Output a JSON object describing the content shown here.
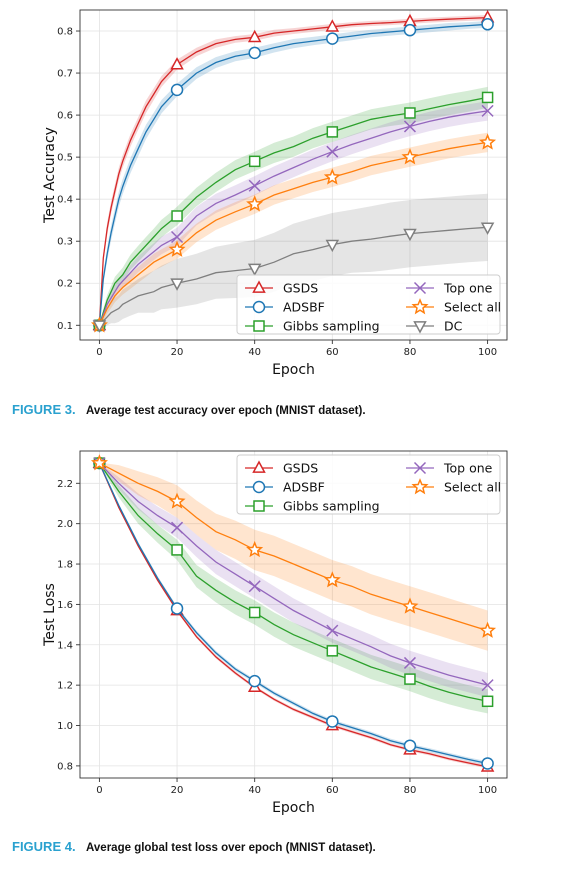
{
  "colors": {
    "GSDS": "#d62728",
    "ADSBF": "#1f77b4",
    "Gibbs sampling": "#2ca02c",
    "Top one": "#9467bd",
    "Select all": "#ff7f0e",
    "DC": "#7f7f7f"
  },
  "figures": [
    {
      "label": "FIGURE 3.",
      "caption": "Average test accuracy over epoch (MNIST dataset).",
      "chart_data": {
        "type": "line",
        "xlabel": "Epoch",
        "ylabel": "Test Accuracy",
        "xlim": [
          -5,
          105
        ],
        "ylim": [
          0.065,
          0.85
        ],
        "xticks": [
          0,
          20,
          40,
          60,
          80,
          100
        ],
        "yticks": [
          0.1,
          0.2,
          0.3,
          0.4,
          0.5,
          0.6,
          0.7,
          0.8
        ],
        "tick_labels_x": [
          "0",
          "20",
          "40",
          "60",
          "80",
          "100"
        ],
        "tick_labels_y": [
          "0.1",
          "0.2",
          "0.3",
          "0.4",
          "0.5",
          "0.6",
          "0.7",
          "0.8"
        ],
        "grid": true,
        "legend_position": "lower-right",
        "legend_columns": 2,
        "x": [
          0,
          1,
          2,
          3,
          4,
          5,
          6,
          8,
          10,
          12,
          14,
          16,
          18,
          20,
          25,
          30,
          35,
          40,
          45,
          50,
          55,
          60,
          65,
          70,
          75,
          80,
          85,
          90,
          95,
          100
        ],
        "series": [
          {
            "name": "GSDS",
            "marker": "triangle-up",
            "values": [
              0.1,
              0.26,
              0.33,
              0.38,
              0.42,
              0.46,
              0.49,
              0.54,
              0.58,
              0.62,
              0.65,
              0.68,
              0.7,
              0.72,
              0.75,
              0.77,
              0.78,
              0.785,
              0.795,
              0.8,
              0.805,
              0.81,
              0.815,
              0.818,
              0.82,
              0.823,
              0.826,
              0.828,
              0.83,
              0.832
            ],
            "band": [
              0.003,
              0.01,
              0.015,
              0.015,
              0.015,
              0.015,
              0.015,
              0.015,
              0.015,
              0.015,
              0.014,
              0.013,
              0.012,
              0.012,
              0.01,
              0.01,
              0.008,
              0.008,
              0.008,
              0.007,
              0.007,
              0.007,
              0.006,
              0.006,
              0.006,
              0.006,
              0.006,
              0.006,
              0.006,
              0.006
            ]
          },
          {
            "name": "ADSBF",
            "marker": "circle",
            "values": [
              0.1,
              0.21,
              0.27,
              0.32,
              0.36,
              0.4,
              0.43,
              0.48,
              0.52,
              0.56,
              0.59,
              0.62,
              0.64,
              0.66,
              0.7,
              0.725,
              0.74,
              0.748,
              0.76,
              0.77,
              0.776,
              0.782,
              0.788,
              0.794,
              0.798,
              0.802,
              0.806,
              0.81,
              0.813,
              0.816
            ],
            "band": [
              0.003,
              0.012,
              0.016,
              0.018,
              0.018,
              0.018,
              0.018,
              0.018,
              0.018,
              0.017,
              0.016,
              0.016,
              0.015,
              0.015,
              0.014,
              0.013,
              0.012,
              0.012,
              0.011,
              0.011,
              0.01,
              0.01,
              0.01,
              0.009,
              0.009,
              0.009,
              0.009,
              0.009,
              0.008,
              0.008
            ]
          },
          {
            "name": "Gibbs sampling",
            "marker": "square",
            "values": [
              0.1,
              0.13,
              0.16,
              0.18,
              0.2,
              0.21,
              0.22,
              0.25,
              0.27,
              0.29,
              0.31,
              0.33,
              0.345,
              0.36,
              0.405,
              0.44,
              0.47,
              0.49,
              0.51,
              0.525,
              0.545,
              0.56,
              0.575,
              0.59,
              0.598,
              0.605,
              0.615,
              0.625,
              0.633,
              0.642
            ],
            "band": [
              0.003,
              0.01,
              0.012,
              0.014,
              0.015,
              0.016,
              0.017,
              0.018,
              0.019,
              0.02,
              0.02,
              0.021,
              0.021,
              0.022,
              0.022,
              0.023,
              0.023,
              0.023,
              0.024,
              0.024,
              0.024,
              0.024,
              0.024,
              0.024,
              0.024,
              0.025,
              0.025,
              0.025,
              0.025,
              0.025
            ]
          },
          {
            "name": "Top one",
            "marker": "x",
            "values": [
              0.1,
              0.125,
              0.15,
              0.165,
              0.18,
              0.195,
              0.205,
              0.225,
              0.245,
              0.26,
              0.275,
              0.29,
              0.3,
              0.31,
              0.36,
              0.39,
              0.41,
              0.432,
              0.455,
              0.475,
              0.495,
              0.513,
              0.53,
              0.545,
              0.56,
              0.573,
              0.585,
              0.595,
              0.603,
              0.61
            ],
            "band": [
              0.003,
              0.01,
              0.012,
              0.014,
              0.015,
              0.016,
              0.017,
              0.018,
              0.019,
              0.02,
              0.02,
              0.021,
              0.021,
              0.022,
              0.022,
              0.023,
              0.023,
              0.023,
              0.023,
              0.023,
              0.023,
              0.023,
              0.023,
              0.023,
              0.023,
              0.023,
              0.023,
              0.023,
              0.023,
              0.023
            ]
          },
          {
            "name": "Select all",
            "marker": "star",
            "values": [
              0.1,
              0.12,
              0.14,
              0.155,
              0.17,
              0.18,
              0.19,
              0.205,
              0.22,
              0.235,
              0.25,
              0.26,
              0.27,
              0.28,
              0.32,
              0.35,
              0.37,
              0.388,
              0.41,
              0.425,
              0.44,
              0.452,
              0.465,
              0.48,
              0.49,
              0.5,
              0.51,
              0.52,
              0.528,
              0.535
            ],
            "band": [
              0.003,
              0.01,
              0.012,
              0.014,
              0.015,
              0.016,
              0.017,
              0.018,
              0.019,
              0.02,
              0.02,
              0.021,
              0.021,
              0.022,
              0.022,
              0.023,
              0.023,
              0.023,
              0.023,
              0.023,
              0.023,
              0.023,
              0.023,
              0.023,
              0.023,
              0.023,
              0.023,
              0.023,
              0.023,
              0.023
            ]
          },
          {
            "name": "DC",
            "marker": "triangle-down",
            "values": [
              0.1,
              0.11,
              0.12,
              0.13,
              0.135,
              0.14,
              0.15,
              0.16,
              0.17,
              0.175,
              0.18,
              0.19,
              0.195,
              0.2,
              0.21,
              0.225,
              0.23,
              0.235,
              0.25,
              0.27,
              0.28,
              0.292,
              0.3,
              0.305,
              0.312,
              0.318,
              0.322,
              0.326,
              0.33,
              0.333
            ],
            "band": [
              0.003,
              0.015,
              0.02,
              0.025,
              0.03,
              0.032,
              0.035,
              0.037,
              0.04,
              0.045,
              0.05,
              0.052,
              0.055,
              0.058,
              0.06,
              0.062,
              0.065,
              0.068,
              0.07,
              0.072,
              0.075,
              0.075,
              0.075,
              0.078,
              0.08,
              0.08,
              0.08,
              0.08,
              0.08,
              0.08
            ]
          }
        ],
        "marker_x": [
          0,
          20,
          40,
          60,
          80,
          100
        ]
      }
    },
    {
      "label": "FIGURE 4.",
      "caption": "Average global test loss over epoch (MNIST dataset).",
      "chart_data": {
        "type": "line",
        "xlabel": "Epoch",
        "ylabel": "Test Loss",
        "xlim": [
          -5,
          105
        ],
        "ylim": [
          0.74,
          2.36
        ],
        "xticks": [
          0,
          20,
          40,
          60,
          80,
          100
        ],
        "yticks": [
          0.8,
          1.0,
          1.2,
          1.4,
          1.6,
          1.8,
          2.0,
          2.2
        ],
        "tick_labels_x": [
          "0",
          "20",
          "40",
          "60",
          "80",
          "100"
        ],
        "tick_labels_y": [
          "0.8",
          "1.0",
          "1.2",
          "1.4",
          "1.6",
          "1.8",
          "2.0",
          "2.2"
        ],
        "grid": true,
        "legend_position": "upper-right",
        "legend_columns": 2,
        "x": [
          0,
          5,
          10,
          15,
          20,
          25,
          30,
          35,
          40,
          45,
          50,
          55,
          60,
          65,
          70,
          75,
          80,
          85,
          90,
          95,
          100
        ],
        "series": [
          {
            "name": "GSDS",
            "marker": "triangle-up",
            "values": [
              2.3,
              2.08,
              1.89,
              1.72,
              1.57,
              1.44,
              1.34,
              1.26,
              1.19,
              1.13,
              1.08,
              1.04,
              1.0,
              0.97,
              0.94,
              0.905,
              0.88,
              0.86,
              0.835,
              0.815,
              0.795
            ],
            "band": [
              0.003,
              0.006,
              0.007,
              0.008,
              0.008,
              0.008,
              0.008,
              0.008,
              0.008,
              0.008,
              0.008,
              0.008,
              0.008,
              0.008,
              0.008,
              0.008,
              0.008,
              0.008,
              0.008,
              0.008,
              0.008
            ]
          },
          {
            "name": "ADSBF",
            "marker": "circle",
            "values": [
              2.3,
              2.09,
              1.9,
              1.73,
              1.58,
              1.46,
              1.36,
              1.28,
              1.22,
              1.16,
              1.11,
              1.06,
              1.02,
              0.99,
              0.96,
              0.925,
              0.9,
              0.878,
              0.855,
              0.832,
              0.812
            ],
            "band": [
              0.003,
              0.008,
              0.009,
              0.01,
              0.01,
              0.01,
              0.01,
              0.01,
              0.01,
              0.01,
              0.01,
              0.01,
              0.01,
              0.01,
              0.01,
              0.01,
              0.01,
              0.01,
              0.01,
              0.01,
              0.01
            ]
          },
          {
            "name": "Gibbs sampling",
            "marker": "square",
            "values": [
              2.3,
              2.16,
              2.04,
              1.95,
              1.87,
              1.74,
              1.67,
              1.61,
              1.56,
              1.5,
              1.45,
              1.41,
              1.37,
              1.33,
              1.29,
              1.26,
              1.23,
              1.195,
              1.165,
              1.14,
              1.12
            ],
            "band": [
              0.003,
              0.03,
              0.04,
              0.045,
              0.05,
              0.055,
              0.06,
              0.06,
              0.06,
              0.06,
              0.06,
              0.06,
              0.06,
              0.06,
              0.06,
              0.06,
              0.06,
              0.06,
              0.06,
              0.06,
              0.06
            ]
          },
          {
            "name": "Top one",
            "marker": "x",
            "values": [
              2.3,
              2.2,
              2.11,
              2.04,
              1.98,
              1.89,
              1.81,
              1.75,
              1.69,
              1.63,
              1.57,
              1.52,
              1.47,
              1.43,
              1.39,
              1.345,
              1.31,
              1.28,
              1.25,
              1.225,
              1.2
            ],
            "band": [
              0.003,
              0.03,
              0.04,
              0.045,
              0.05,
              0.055,
              0.06,
              0.06,
              0.06,
              0.06,
              0.06,
              0.06,
              0.06,
              0.06,
              0.06,
              0.06,
              0.06,
              0.06,
              0.06,
              0.06,
              0.06
            ]
          },
          {
            "name": "Select all",
            "marker": "star",
            "values": [
              2.3,
              2.25,
              2.2,
              2.16,
              2.11,
              2.03,
              1.96,
              1.92,
              1.87,
              1.84,
              1.8,
              1.76,
              1.72,
              1.69,
              1.65,
              1.62,
              1.59,
              1.56,
              1.53,
              1.5,
              1.47
            ],
            "band": [
              0.003,
              0.04,
              0.06,
              0.07,
              0.08,
              0.085,
              0.09,
              0.095,
              0.1,
              0.1,
              0.1,
              0.1,
              0.1,
              0.1,
              0.1,
              0.1,
              0.1,
              0.1,
              0.1,
              0.1,
              0.1
            ]
          }
        ],
        "marker_x": [
          0,
          20,
          40,
          60,
          80,
          100
        ]
      }
    }
  ]
}
